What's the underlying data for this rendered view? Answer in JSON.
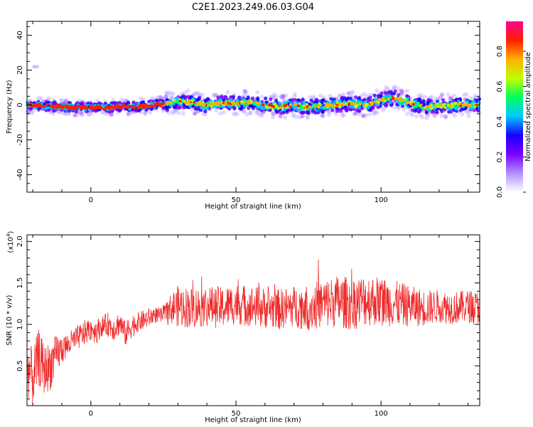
{
  "title": "C2E1.2023.249.06.03.G04",
  "colors": {
    "snr_line": "#ee2a2a",
    "axis": "#000000",
    "background": "#ffffff"
  },
  "chart_data": [
    {
      "type": "heatmap",
      "xlabel": "Height of straight line (km)",
      "ylabel": "Frequency (Hz)",
      "xlim": [
        -22,
        134
      ],
      "ylim": [
        -50,
        48
      ],
      "xticks": [
        0,
        50,
        100
      ],
      "xticklabels": [
        "0",
        "50",
        "100"
      ],
      "yticks": [
        -40,
        -20,
        0,
        20,
        40
      ],
      "yticklabels": [
        "-40",
        "-20",
        "0",
        "20",
        "40"
      ],
      "grid": false,
      "colorbar": {
        "label": "Normalized spectral amplitude",
        "range": [
          0,
          0.97
        ],
        "ticks": [
          0.0,
          0.2,
          0.4,
          0.6,
          0.8
        ],
        "ticklabels": [
          "0.0",
          "0.2",
          "0.4",
          "0.6",
          "0.8"
        ],
        "colormap": [
          "#ffffff",
          "#b090ff",
          "#7a00ff",
          "#1a00ff",
          "#00c8ff",
          "#00ff60",
          "#c0ff00",
          "#ffb000",
          "#ff2000",
          "#ff0090"
        ]
      },
      "ridge": {
        "description": "spectral ridge center frequency vs height",
        "x": [
          -22,
          -15,
          -10,
          -5,
          0,
          5,
          10,
          15,
          20,
          25,
          30,
          35,
          40,
          45,
          50,
          55,
          60,
          65,
          70,
          75,
          80,
          85,
          90,
          95,
          100,
          105,
          110,
          115,
          120,
          125,
          130,
          134
        ],
        "y": [
          0,
          -0.5,
          -1,
          -1.5,
          -1.5,
          -1.5,
          -1,
          -1,
          -0.5,
          0.5,
          2,
          1.5,
          0,
          1,
          1,
          1.5,
          0,
          -1,
          0,
          -1,
          -0.5,
          0,
          1,
          0,
          3,
          4,
          1,
          -1,
          -0.5,
          0,
          0,
          0
        ]
      },
      "outlier_blob": {
        "x": -19,
        "y": 22
      }
    },
    {
      "type": "line",
      "xlabel": "Height of straight line (km)",
      "ylabel": "SNR (10 * v/v)",
      "yscale_label": "(x10",
      "yscale_exponent": "4",
      "yscale_close": ")",
      "xlim": [
        -22,
        134
      ],
      "ylim": [
        0.02,
        2.08
      ],
      "xticks": [
        0,
        50,
        100
      ],
      "xticklabels": [
        "0",
        "50",
        "100"
      ],
      "yticks": [
        0.5,
        1.0,
        1.5,
        2.0
      ],
      "yticklabels": [
        "0.5",
        "1.0",
        "1.5",
        "2.0"
      ],
      "grid": false,
      "series": [
        {
          "color": "#ee2a2a",
          "x": [
            -22,
            -20,
            -18,
            -16,
            -14,
            -12,
            -10,
            -8,
            -6,
            -4,
            -2,
            0,
            2,
            4,
            6,
            8,
            10,
            12,
            14,
            16,
            18,
            20,
            22,
            24,
            26,
            28,
            30,
            35,
            40,
            45,
            50,
            55,
            60,
            65,
            70,
            75,
            80,
            85,
            90,
            95,
            100,
            105,
            110,
            115,
            120,
            125,
            130,
            134
          ],
          "y": [
            0.5,
            0.35,
            0.6,
            0.45,
            0.5,
            0.62,
            0.7,
            0.75,
            0.8,
            0.85,
            0.9,
            0.95,
            0.92,
            0.98,
            1.0,
            0.95,
            1.02,
            0.88,
            0.98,
            1.02,
            1.05,
            1.08,
            1.12,
            1.1,
            1.15,
            1.2,
            1.22,
            1.2,
            1.22,
            1.2,
            1.25,
            1.22,
            1.2,
            1.18,
            1.22,
            1.2,
            1.25,
            1.28,
            1.25,
            1.3,
            1.28,
            1.25,
            1.22,
            1.2,
            1.22,
            1.2,
            1.22,
            1.2
          ],
          "noise": [
            0.35,
            0.35,
            0.35,
            0.3,
            0.3,
            0.25,
            0.18,
            0.15,
            0.15,
            0.15,
            0.15,
            0.15,
            0.15,
            0.12,
            0.15,
            0.15,
            0.15,
            0.15,
            0.15,
            0.12,
            0.12,
            0.12,
            0.1,
            0.1,
            0.12,
            0.2,
            0.25,
            0.25,
            0.25,
            0.25,
            0.25,
            0.25,
            0.25,
            0.25,
            0.25,
            0.28,
            0.3,
            0.32,
            0.32,
            0.32,
            0.3,
            0.28,
            0.25,
            0.22,
            0.2,
            0.2,
            0.2,
            0.2
          ]
        }
      ]
    }
  ]
}
